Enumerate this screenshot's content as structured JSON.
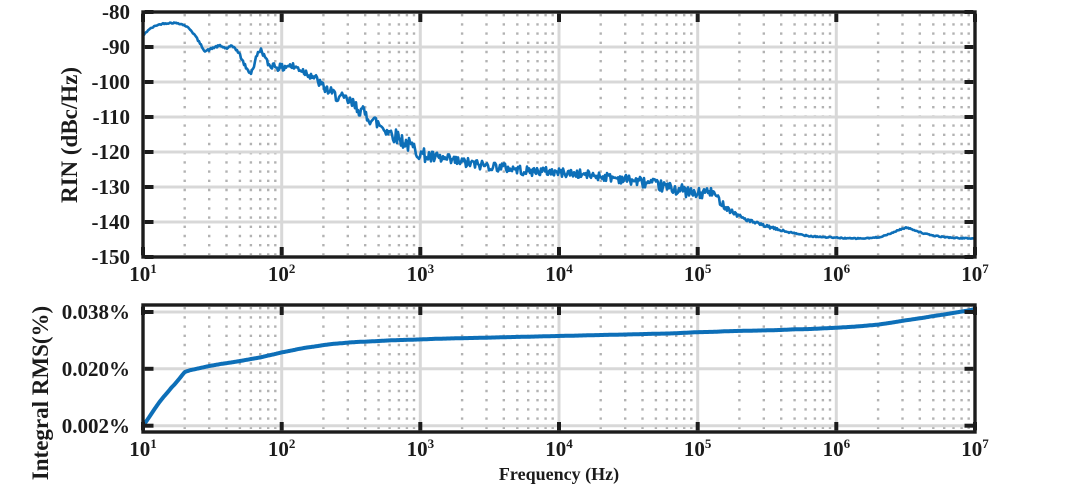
{
  "figure": {
    "background": "#ffffff",
    "line_color": "#0d6fb8",
    "grid_major_color": "#d8d8d8",
    "grid_minor_color": "#b2b2b2",
    "axis_color": "#1c1c1c",
    "text_color": "#1b1b1b"
  },
  "chart_data": [
    {
      "type": "line",
      "title": "",
      "xlabel": "",
      "ylabel": "RIN (dBc/Hz)",
      "x_scale": "log",
      "grid": true,
      "xlim": [
        10,
        10000000
      ],
      "ylim": [
        -150,
        -80
      ],
      "x_ticks": [
        10,
        100,
        1000,
        10000,
        100000,
        1000000,
        10000000
      ],
      "x_tick_labels": [
        {
          "base": "10",
          "exp": "1"
        },
        {
          "base": "10",
          "exp": "2"
        },
        {
          "base": "10",
          "exp": "3"
        },
        {
          "base": "10",
          "exp": "4"
        },
        {
          "base": "10",
          "exp": "5"
        },
        {
          "base": "10",
          "exp": "6"
        },
        {
          "base": "10",
          "exp": "7"
        }
      ],
      "y_ticks": [
        -150,
        -140,
        -130,
        -120,
        -110,
        -100,
        -90,
        -80
      ],
      "y_tick_labels": [
        "-150",
        "-140",
        "-130",
        "-120",
        "-110",
        "-100",
        "-90",
        "-80"
      ],
      "series": [
        {
          "name": "RIN",
          "points": [
            [
              10,
              -86.8
            ],
            [
              11,
              -85
            ],
            [
              12.5,
              -83.8
            ],
            [
              14,
              -83.3
            ],
            [
              16,
              -83.1
            ],
            [
              18,
              -83.2
            ],
            [
              20,
              -83.8
            ],
            [
              22,
              -85
            ],
            [
              24,
              -87
            ],
            [
              26,
              -89.3
            ],
            [
              28,
              -91.2
            ],
            [
              30,
              -90.8
            ],
            [
              33,
              -90
            ],
            [
              36,
              -89.7
            ],
            [
              40,
              -90.4
            ],
            [
              43,
              -89.9
            ],
            [
              46,
              -90.1
            ],
            [
              50,
              -92.3
            ],
            [
              53,
              -94.5
            ],
            [
              57,
              -96.8
            ],
            [
              60,
              -97.4
            ],
            [
              63,
              -95.5
            ],
            [
              66,
              -92.5
            ],
            [
              70,
              -90.7
            ],
            [
              73,
              -91.5
            ],
            [
              77,
              -93.8
            ],
            [
              82,
              -95.4
            ],
            [
              88,
              -95.1
            ],
            [
              95,
              -95.8
            ],
            [
              100,
              -96.1
            ],
            [
              110,
              -95.2
            ],
            [
              120,
              -95.6
            ],
            [
              135,
              -96.2
            ],
            [
              150,
              -97.3
            ],
            [
              165,
              -98
            ],
            [
              180,
              -99.5
            ],
            [
              200,
              -101.5
            ],
            [
              230,
              -103.2
            ],
            [
              260,
              -104.4
            ],
            [
              300,
              -105.4
            ],
            [
              350,
              -107.3
            ],
            [
              400,
              -109.2
            ],
            [
              450,
              -110.8
            ],
            [
              500,
              -112
            ],
            [
              600,
              -114.3
            ],
            [
              700,
              -116
            ],
            [
              800,
              -117.6
            ],
            [
              900,
              -119
            ],
            [
              1000,
              -120.5
            ],
            [
              1200,
              -121.6
            ],
            [
              1500,
              -122.2
            ],
            [
              2000,
              -123
            ],
            [
              2600,
              -123.6
            ],
            [
              3300,
              -124
            ],
            [
              4000,
              -124.4
            ],
            [
              5000,
              -125
            ],
            [
              6000,
              -125.6
            ],
            [
              7000,
              -125.4
            ],
            [
              8500,
              -125.6
            ],
            [
              10000,
              -125.8
            ],
            [
              13000,
              -126.2
            ],
            [
              16000,
              -126.5
            ],
            [
              20000,
              -126.9
            ],
            [
              26000,
              -127.4
            ],
            [
              33000,
              -128
            ],
            [
              40000,
              -128.6
            ],
            [
              50000,
              -129.4
            ],
            [
              65000,
              -130.4
            ],
            [
              80000,
              -131
            ],
            [
              95000,
              -132.2
            ],
            [
              105000,
              -132
            ],
            [
              115000,
              -131.3
            ],
            [
              130000,
              -131.7
            ],
            [
              145000,
              -134
            ],
            [
              160000,
              -135.8
            ],
            [
              180000,
              -137.2
            ],
            [
              200000,
              -138.3
            ],
            [
              240000,
              -139.8
            ],
            [
              300000,
              -141
            ],
            [
              400000,
              -142.4
            ],
            [
              500000,
              -143.3
            ],
            [
              650000,
              -144
            ],
            [
              800000,
              -144.3
            ],
            [
              1000000,
              -144.5
            ],
            [
              1300000,
              -144.7
            ],
            [
              1600000,
              -144.7
            ],
            [
              2000000,
              -144.4
            ],
            [
              2400000,
              -143.5
            ],
            [
              2800000,
              -142.3
            ],
            [
              3200000,
              -141.6
            ],
            [
              3600000,
              -142.2
            ],
            [
              4200000,
              -143.2
            ],
            [
              5000000,
              -143.9
            ],
            [
              6000000,
              -144.3
            ],
            [
              7500000,
              -144.6
            ],
            [
              10000000,
              -144.7
            ]
          ],
          "noise_envelope": [
            [
              10,
              0.15
            ],
            [
              20,
              0.2
            ],
            [
              40,
              0.35
            ],
            [
              60,
              0.5
            ],
            [
              80,
              0.9
            ],
            [
              100,
              1.2
            ],
            [
              150,
              1.3
            ],
            [
              200,
              1.4
            ],
            [
              300,
              1.8
            ],
            [
              500,
              2.0
            ],
            [
              800,
              2.2
            ],
            [
              1000,
              2.0
            ],
            [
              1500,
              1.8
            ],
            [
              2500,
              1.5
            ],
            [
              5000,
              1.4
            ],
            [
              10000,
              1.3
            ],
            [
              20000,
              1.3
            ],
            [
              40000,
              1.5
            ],
            [
              70000,
              1.7
            ],
            [
              100000,
              1.8
            ],
            [
              130000,
              1.2
            ],
            [
              160000,
              0.9
            ],
            [
              200000,
              0.6
            ],
            [
              300000,
              0.4
            ],
            [
              500000,
              0.25
            ],
            [
              1000000,
              0.15
            ],
            [
              3000000,
              0.15
            ],
            [
              10000000,
              0.12
            ]
          ]
        }
      ]
    },
    {
      "type": "line",
      "title": "",
      "xlabel": "Frequency (Hz)",
      "ylabel": "Integral RMS(%)",
      "x_scale": "log",
      "grid": true,
      "xlim": [
        10,
        10000000
      ],
      "ylim": [
        0,
        0.0402
      ],
      "x_ticks": [
        10,
        100,
        1000,
        10000,
        100000,
        1000000,
        10000000
      ],
      "x_tick_labels": [
        {
          "base": "10",
          "exp": "1"
        },
        {
          "base": "10",
          "exp": "2"
        },
        {
          "base": "10",
          "exp": "3"
        },
        {
          "base": "10",
          "exp": "4"
        },
        {
          "base": "10",
          "exp": "5"
        },
        {
          "base": "10",
          "exp": "6"
        },
        {
          "base": "10",
          "exp": "7"
        }
      ],
      "y_ticks": [
        0.002,
        0.02,
        0.038
      ],
      "y_tick_labels": [
        "0.002%",
        "0.020%",
        "0.038%"
      ],
      "series": [
        {
          "name": "Integral RMS",
          "points": [
            [
              10,
              0.0019
            ],
            [
              11,
              0.0045
            ],
            [
              12,
              0.007
            ],
            [
              13,
              0.0092
            ],
            [
              14,
              0.011
            ],
            [
              15,
              0.0125
            ],
            [
              16,
              0.014
            ],
            [
              17,
              0.0152
            ],
            [
              18,
              0.0165
            ],
            [
              19,
              0.0178
            ],
            [
              20,
              0.019
            ],
            [
              22,
              0.0196
            ],
            [
              25,
              0.0201
            ],
            [
              28,
              0.0206
            ],
            [
              32,
              0.0211
            ],
            [
              36,
              0.0215
            ],
            [
              40,
              0.0218
            ],
            [
              46,
              0.0222
            ],
            [
              52,
              0.0226
            ],
            [
              60,
              0.0231
            ],
            [
              70,
              0.0236
            ],
            [
              80,
              0.0242
            ],
            [
              90,
              0.0247
            ],
            [
              100,
              0.0252
            ],
            [
              115,
              0.0257
            ],
            [
              130,
              0.0262
            ],
            [
              150,
              0.0267
            ],
            [
              175,
              0.0271
            ],
            [
              200,
              0.0275
            ],
            [
              235,
              0.0279
            ],
            [
              270,
              0.0281
            ],
            [
              300,
              0.0283
            ],
            [
              350,
              0.0285
            ],
            [
              400,
              0.0286
            ],
            [
              500,
              0.0288
            ],
            [
              600,
              0.029
            ],
            [
              700,
              0.0291
            ],
            [
              850,
              0.0292
            ],
            [
              1000,
              0.0293
            ],
            [
              1300,
              0.0295
            ],
            [
              1600,
              0.0296
            ],
            [
              2000,
              0.0297
            ],
            [
              2600,
              0.0298
            ],
            [
              3300,
              0.0299
            ],
            [
              4000,
              0.03
            ],
            [
              5000,
              0.0301
            ],
            [
              6500,
              0.0302
            ],
            [
              8000,
              0.0303
            ],
            [
              10000,
              0.0304
            ],
            [
              13000,
              0.0305
            ],
            [
              16000,
              0.0306
            ],
            [
              20000,
              0.0307
            ],
            [
              26000,
              0.0308
            ],
            [
              33000,
              0.0309
            ],
            [
              40000,
              0.031
            ],
            [
              50000,
              0.0311
            ],
            [
              65000,
              0.0312
            ],
            [
              80000,
              0.0314
            ],
            [
              100000,
              0.0316
            ],
            [
              130000,
              0.0317
            ],
            [
              160000,
              0.0319
            ],
            [
              200000,
              0.032
            ],
            [
              260000,
              0.0321
            ],
            [
              330000,
              0.0322
            ],
            [
              400000,
              0.0323
            ],
            [
              500000,
              0.0325
            ],
            [
              650000,
              0.0326
            ],
            [
              800000,
              0.0328
            ],
            [
              1000000,
              0.033
            ],
            [
              1300000,
              0.0333
            ],
            [
              1600000,
              0.0336
            ],
            [
              2000000,
              0.034
            ],
            [
              2500000,
              0.0346
            ],
            [
              3000000,
              0.0352
            ],
            [
              3600000,
              0.0357
            ],
            [
              4300000,
              0.0362
            ],
            [
              5000000,
              0.0367
            ],
            [
              6000000,
              0.0372
            ],
            [
              7000000,
              0.0377
            ],
            [
              8500000,
              0.0383
            ],
            [
              10000000,
              0.0389
            ]
          ]
        }
      ]
    }
  ]
}
